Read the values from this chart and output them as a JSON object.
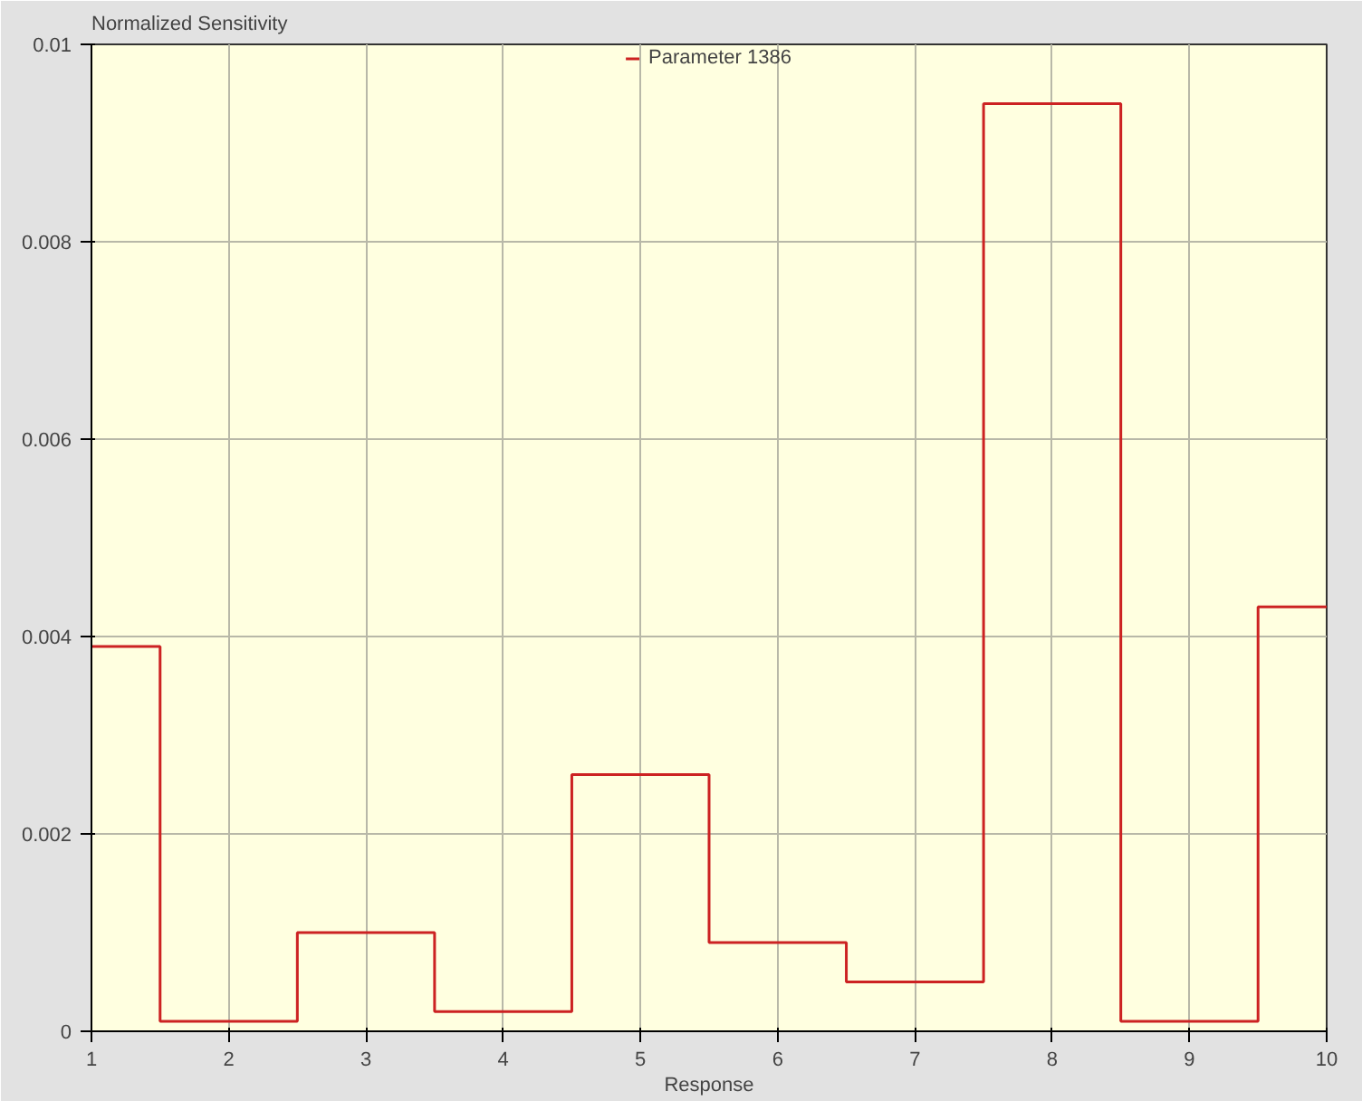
{
  "chart_data": {
    "type": "step",
    "xlabel": "Response",
    "ylabel": "Normalized Sensitivity",
    "x": [
      1,
      2,
      3,
      4,
      5,
      6,
      7,
      8,
      9,
      10
    ],
    "series": [
      {
        "name": "Parameter 1386",
        "color": "#cc2222",
        "values": [
          0.0039,
          0.0001,
          0.001,
          0.0002,
          0.0026,
          0.0009,
          0.0005,
          0.0094,
          0.0001,
          0.0043
        ]
      }
    ],
    "xlim": [
      1,
      10
    ],
    "ylim": [
      0,
      0.01
    ],
    "xticks": [
      1,
      2,
      3,
      4,
      5,
      6,
      7,
      8,
      9,
      10
    ],
    "yticks": [
      0,
      0.002,
      0.004,
      0.006,
      0.008,
      0.01
    ],
    "grid": true,
    "legend": "top",
    "marker": "none",
    "line_style": "solid"
  }
}
